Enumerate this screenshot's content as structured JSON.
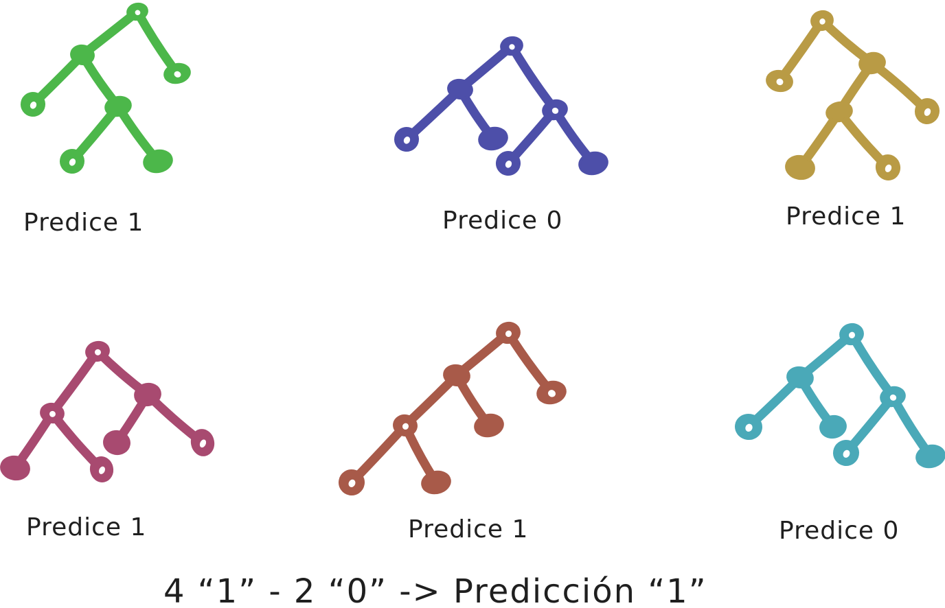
{
  "trees": [
    {
      "id": "tree-1",
      "color": "#4cb74a",
      "prediction_label": "Predice 1"
    },
    {
      "id": "tree-2",
      "color": "#4d4fa9",
      "prediction_label": "Predice 0"
    },
    {
      "id": "tree-3",
      "color": "#b99b45",
      "prediction_label": "Predice 1"
    },
    {
      "id": "tree-4",
      "color": "#a84a70",
      "prediction_label": "Predice 1"
    },
    {
      "id": "tree-5",
      "color": "#a85a49",
      "prediction_label": "Predice 1"
    },
    {
      "id": "tree-6",
      "color": "#4aa9b8",
      "prediction_label": "Predice 0"
    }
  ],
  "summary": {
    "text": "4 “1”   -  2 “0”  ->  Predicción “1”"
  }
}
